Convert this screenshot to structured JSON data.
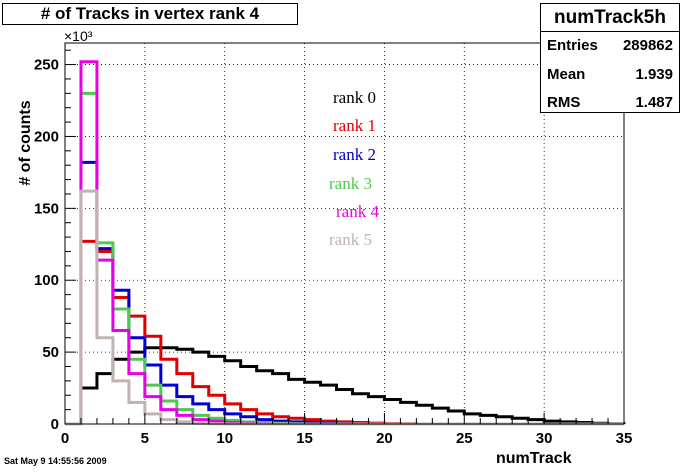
{
  "title": "# of Tracks in vertex rank 4",
  "stats": {
    "name": "numTrack5h",
    "rows": [
      {
        "label": "Entries",
        "value": "289862"
      },
      {
        "label": "Mean",
        "value": "1.939"
      },
      {
        "label": "RMS",
        "value": "1.487"
      }
    ]
  },
  "footer": {
    "date": "Sat May  9 14:55:56 2009"
  },
  "legend": [
    {
      "label": "rank 0",
      "color": "#000000"
    },
    {
      "label": "rank 1",
      "color": "#e00000"
    },
    {
      "label": "rank 2",
      "color": "#0000d0"
    },
    {
      "label": "rank 3",
      "color": "#50c850"
    },
    {
      "label": "rank 4",
      "color": "#e800e8"
    },
    {
      "label": "rank 5",
      "color": "#c0b4b0"
    }
  ],
  "chart_data": {
    "type": "histogram",
    "title": "# of Tracks in vertex rank 4",
    "xlabel": "numTrack",
    "ylabel": "# of counts",
    "y_exponent_label": "×10³",
    "xlim": [
      0,
      35
    ],
    "ylim": [
      0,
      265
    ],
    "y_unit": "thousands",
    "grid": true,
    "bin_width": 1,
    "x_ticks": [
      0,
      5,
      10,
      15,
      20,
      25,
      30,
      35
    ],
    "y_ticks": [
      0,
      50,
      100,
      150,
      200,
      250
    ],
    "series": [
      {
        "name": "rank 0",
        "color": "#000000",
        "values": [
          0,
          25,
          35,
          45,
          50,
          53,
          53,
          52,
          50,
          47,
          44,
          40,
          37,
          35,
          31,
          29,
          27,
          24,
          21,
          19,
          17,
          15,
          13,
          11,
          9,
          7,
          6,
          5,
          4,
          3,
          2,
          1.5,
          1,
          0.5,
          0.2
        ]
      },
      {
        "name": "rank 1",
        "color": "#e00000",
        "values": [
          0,
          127,
          120,
          88,
          75,
          61,
          45,
          35,
          26,
          20,
          14,
          10,
          7,
          5,
          4,
          3,
          2,
          1.5,
          1,
          0.6,
          0.3,
          0.2
        ]
      },
      {
        "name": "rank 2",
        "color": "#0000d0",
        "values": [
          0,
          182,
          122,
          93,
          60,
          41,
          27,
          19,
          14,
          10,
          7,
          5,
          3,
          2,
          1.5,
          1,
          0.5,
          0.2
        ]
      },
      {
        "name": "rank 3",
        "color": "#50c850",
        "values": [
          0,
          230,
          126,
          80,
          45,
          27,
          16,
          10,
          6,
          4,
          2.5,
          1.5,
          1,
          0.5,
          0.2
        ]
      },
      {
        "name": "rank 4",
        "color": "#e800e8",
        "values": [
          0,
          252,
          114,
          65,
          35,
          19,
          10,
          6,
          3,
          2,
          1,
          0.5,
          0.2
        ]
      },
      {
        "name": "rank 5",
        "color": "#c0b4b0",
        "values": [
          0,
          162,
          60,
          30,
          15,
          7,
          3,
          1.5,
          0.5,
          0.2
        ]
      }
    ]
  }
}
